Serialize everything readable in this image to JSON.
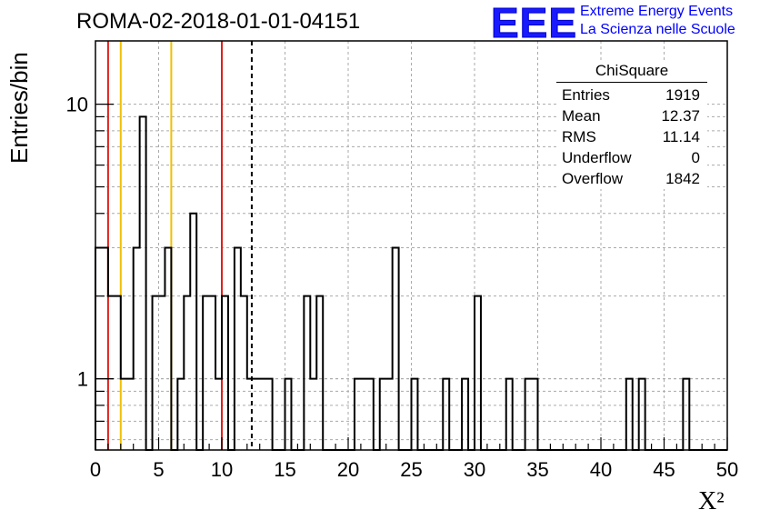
{
  "header": {
    "title": "ROMA-02-2018-01-01-04151",
    "logo_text": "EEE",
    "logo_line1": "Extreme Energy Events",
    "logo_line2": "La Scienza nelle Scuole",
    "logo_color": "#0000ff"
  },
  "stats_box": {
    "title": "ChiSquare",
    "rows": [
      {
        "label": "Entries",
        "value": "1919"
      },
      {
        "label": "Mean",
        "value": "12.37"
      },
      {
        "label": "RMS",
        "value": "11.14"
      },
      {
        "label": "Underflow",
        "value": "0"
      },
      {
        "label": "Overflow",
        "value": "1842"
      }
    ]
  },
  "chart_data": {
    "type": "histogram",
    "title": "ROMA-02-2018-01-01-04151",
    "xlabel": "X²",
    "ylabel": "Entries/bin",
    "xlim": [
      0,
      50
    ],
    "ylim": [
      0.55,
      17
    ],
    "yscale": "log",
    "grid": true,
    "bin_width": 0.5,
    "x_ticks": [
      "0",
      "5",
      "10",
      "15",
      "20",
      "25",
      "30",
      "35",
      "40",
      "45",
      "50"
    ],
    "y_tick_labels": [
      {
        "value": 1,
        "label": "1"
      },
      {
        "value": 10,
        "label": "10"
      }
    ],
    "bins": [
      {
        "x": 0.0,
        "count": 3
      },
      {
        "x": 0.5,
        "count": 3
      },
      {
        "x": 1.0,
        "count": 2
      },
      {
        "x": 1.5,
        "count": 2
      },
      {
        "x": 2.0,
        "count": 1
      },
      {
        "x": 2.5,
        "count": 1
      },
      {
        "x": 3.0,
        "count": 3
      },
      {
        "x": 3.5,
        "count": 9
      },
      {
        "x": 4.5,
        "count": 2
      },
      {
        "x": 5.0,
        "count": 2
      },
      {
        "x": 5.5,
        "count": 3
      },
      {
        "x": 6.5,
        "count": 1
      },
      {
        "x": 7.0,
        "count": 2
      },
      {
        "x": 7.5,
        "count": 4
      },
      {
        "x": 8.5,
        "count": 2
      },
      {
        "x": 9.0,
        "count": 2
      },
      {
        "x": 9.5,
        "count": 1
      },
      {
        "x": 10.0,
        "count": 2
      },
      {
        "x": 11.0,
        "count": 3
      },
      {
        "x": 11.5,
        "count": 2
      },
      {
        "x": 12.0,
        "count": 1
      },
      {
        "x": 12.5,
        "count": 1
      },
      {
        "x": 13.0,
        "count": 1
      },
      {
        "x": 13.5,
        "count": 1
      },
      {
        "x": 15.0,
        "count": 1
      },
      {
        "x": 16.5,
        "count": 2
      },
      {
        "x": 17.0,
        "count": 1
      },
      {
        "x": 17.5,
        "count": 2
      },
      {
        "x": 20.5,
        "count": 1
      },
      {
        "x": 21.0,
        "count": 1
      },
      {
        "x": 21.5,
        "count": 1
      },
      {
        "x": 22.5,
        "count": 1
      },
      {
        "x": 23.0,
        "count": 1
      },
      {
        "x": 23.5,
        "count": 3
      },
      {
        "x": 25.0,
        "count": 1
      },
      {
        "x": 27.5,
        "count": 1
      },
      {
        "x": 29.0,
        "count": 1
      },
      {
        "x": 30.0,
        "count": 2
      },
      {
        "x": 32.5,
        "count": 1
      },
      {
        "x": 34.0,
        "count": 1
      },
      {
        "x": 34.5,
        "count": 1
      },
      {
        "x": 42.0,
        "count": 1
      },
      {
        "x": 43.0,
        "count": 1
      },
      {
        "x": 46.5,
        "count": 1
      }
    ],
    "vertical_lines": [
      {
        "x": 1.0,
        "color": "#e0201a",
        "style": "solid"
      },
      {
        "x": 10.0,
        "color": "#e0201a",
        "style": "solid"
      },
      {
        "x": 2.0,
        "color": "#f0c000",
        "style": "solid"
      },
      {
        "x": 6.0,
        "color": "#f0c000",
        "style": "solid"
      },
      {
        "x": 12.37,
        "color": "#000000",
        "style": "dashed"
      }
    ]
  }
}
